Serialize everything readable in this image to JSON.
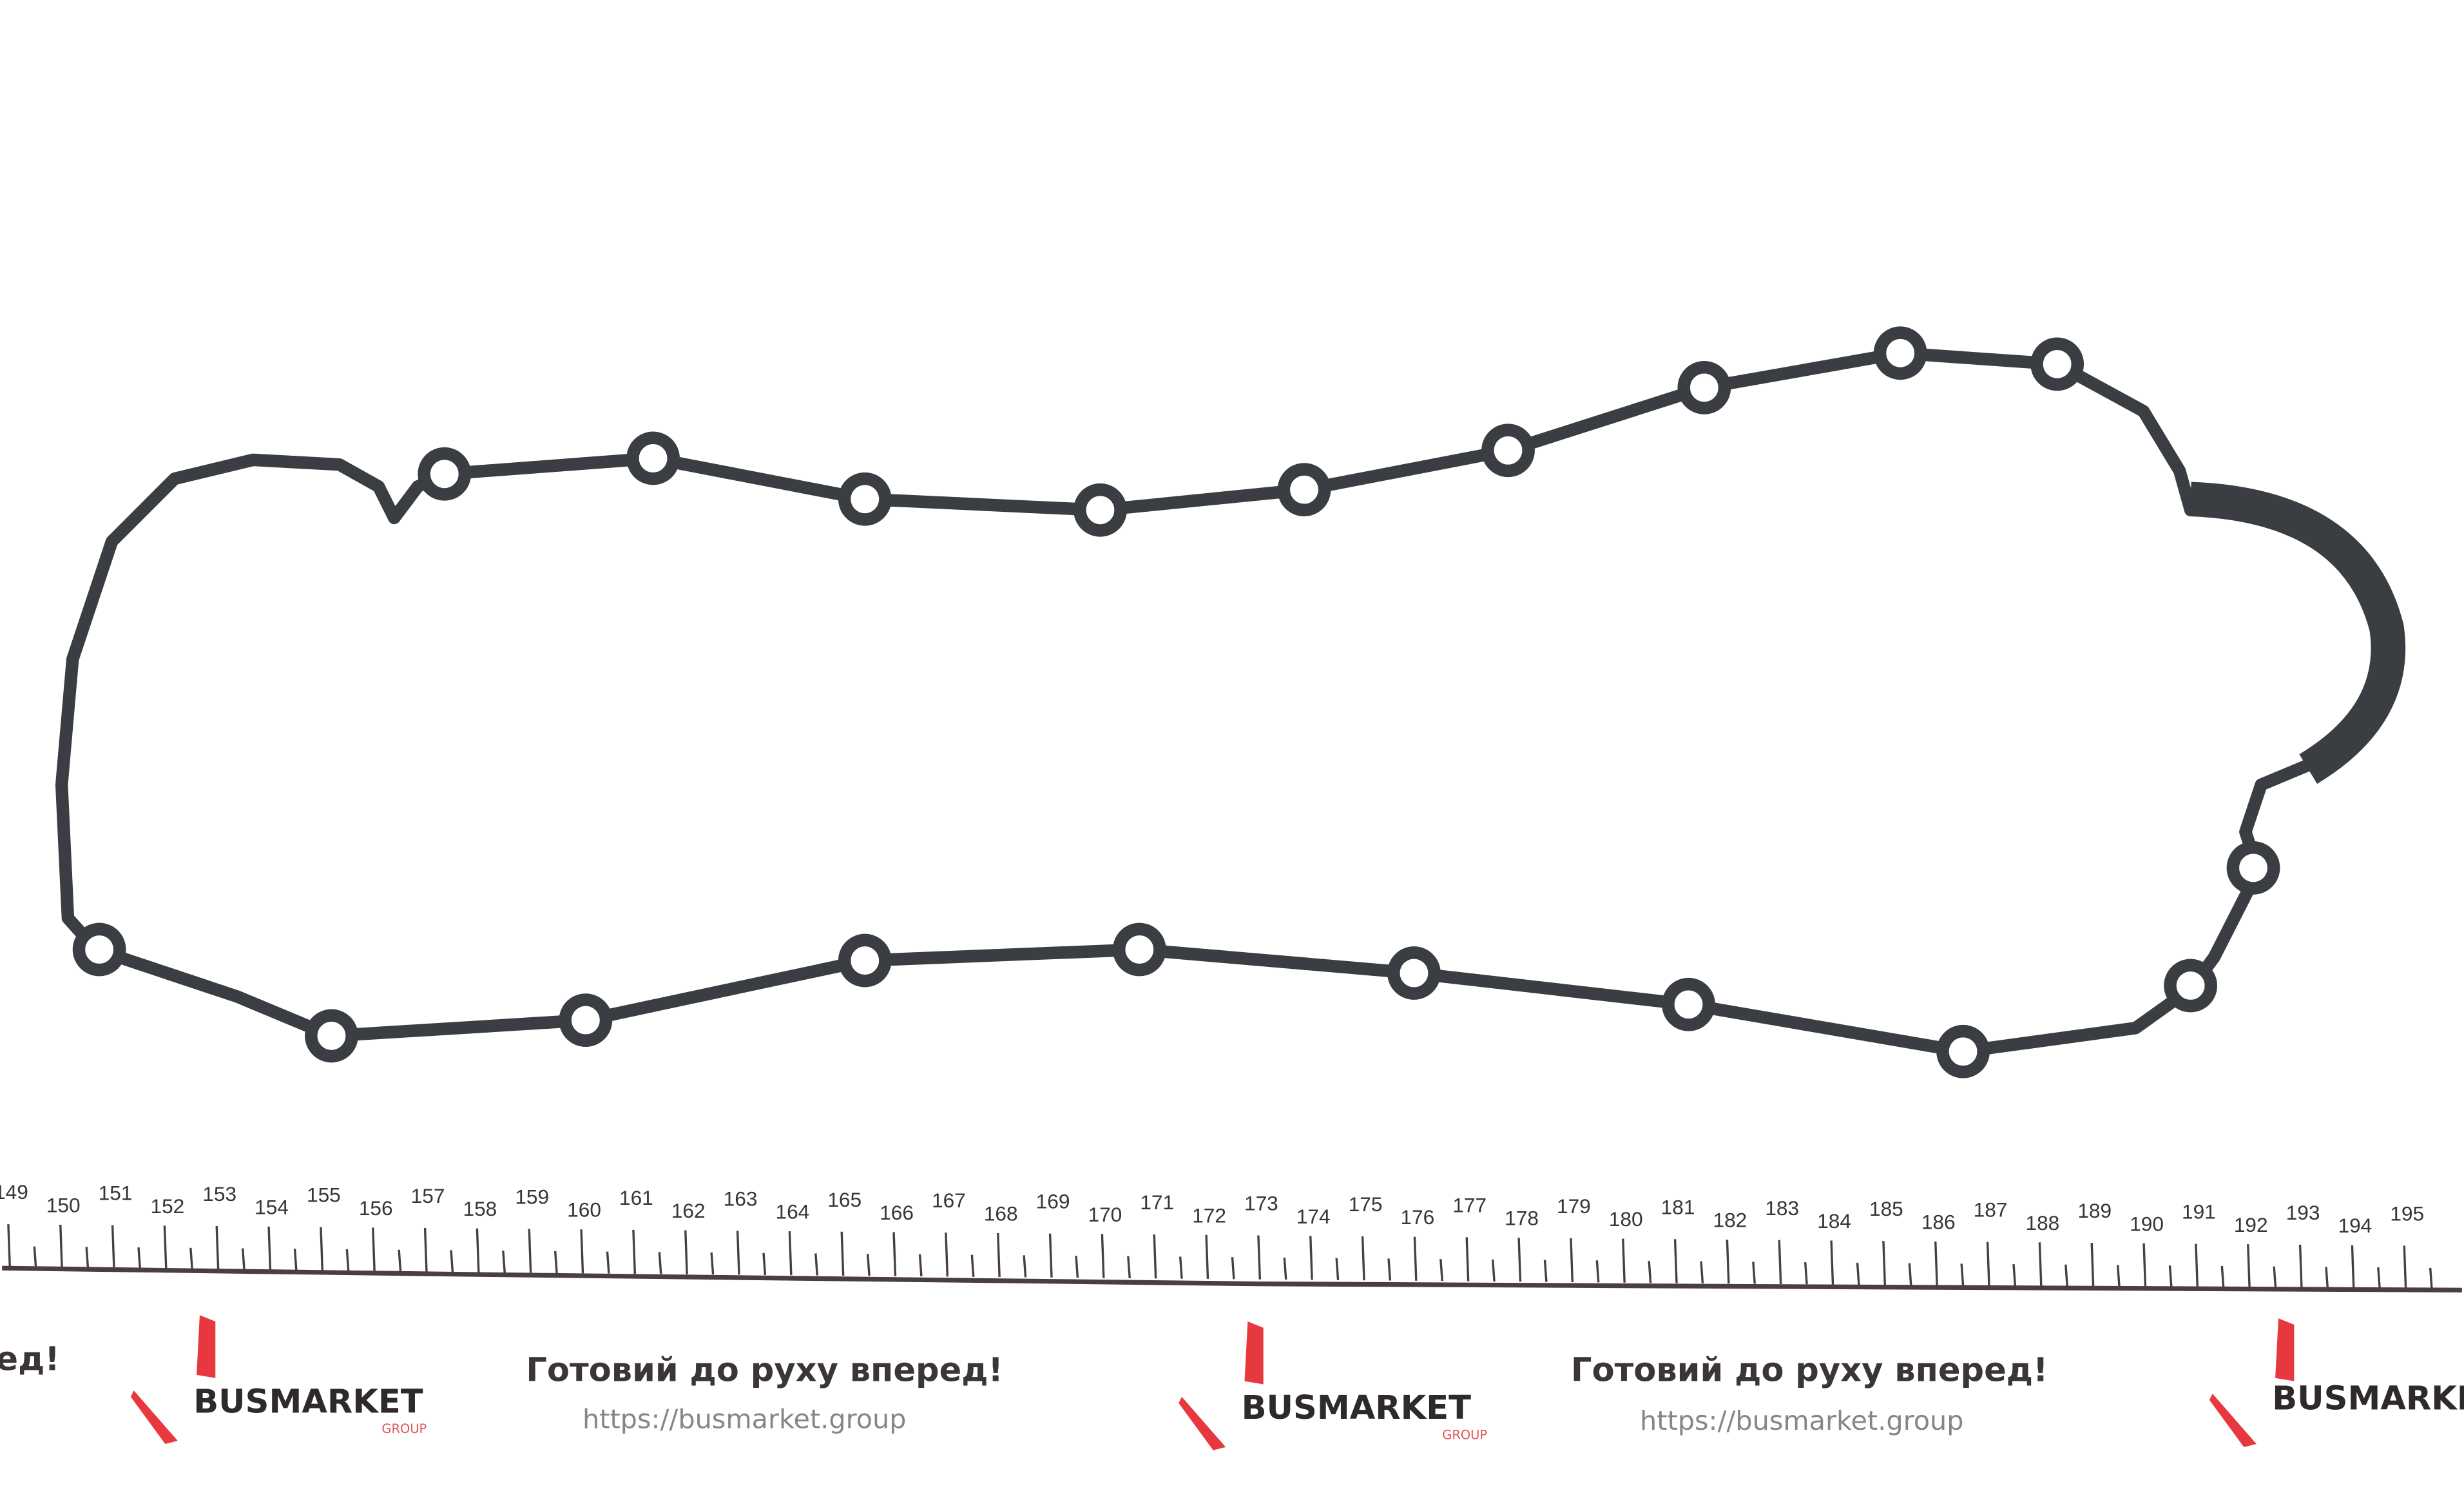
{
  "product": {
    "name": "gasket"
  },
  "ruler": {
    "unit": "cm",
    "labels": [
      "149",
      "150",
      "151",
      "152",
      "153",
      "154",
      "155",
      "156",
      "157",
      "158",
      "159",
      "160",
      "161",
      "162",
      "163",
      "164",
      "165",
      "166",
      "167",
      "168",
      "169",
      "170",
      "171",
      "172",
      "173",
      "174",
      "175",
      "176",
      "177",
      "178",
      "179",
      "180",
      "181",
      "182",
      "183",
      "184",
      "185",
      "186",
      "187",
      "188",
      "189",
      "190",
      "191",
      "192",
      "193",
      "194",
      "195"
    ]
  },
  "branding": {
    "logo_text": "BUSMARKET",
    "logo_sub": "GROUP",
    "slogan": "Готовий до руху вперед!",
    "slogan_partial": "ед!",
    "url": "https://busmarket.group",
    "accent_color": "#e8383f",
    "gasket_color": "#3a3d42"
  }
}
